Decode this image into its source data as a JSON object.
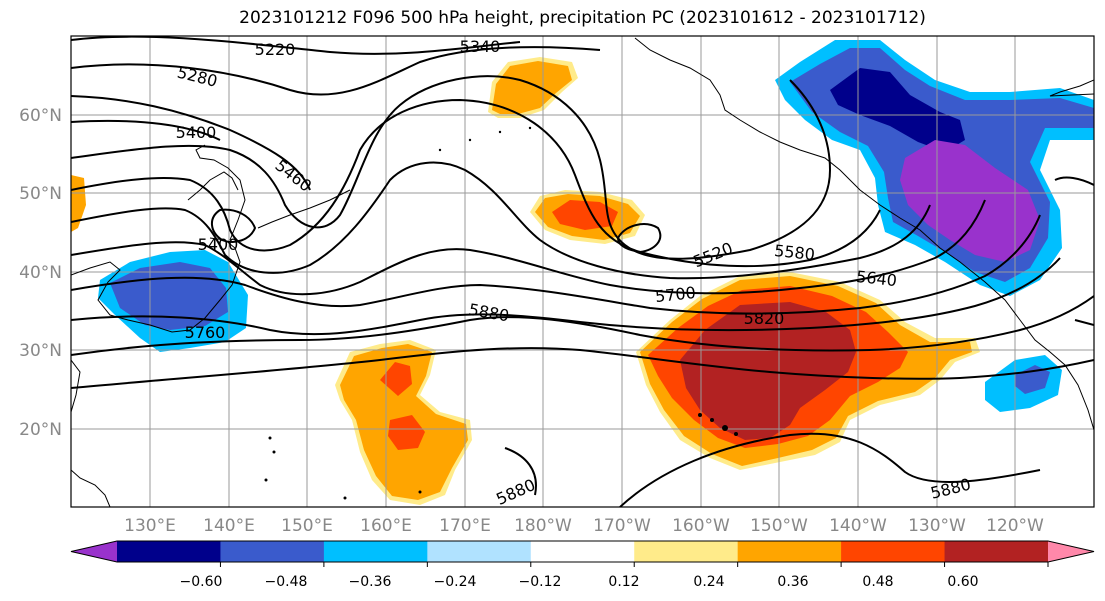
{
  "title": "2023101212 F096 500 hPa height, precipitation PC (2023101612 - 2023101712)",
  "map": {
    "lat_ticks": [
      "60°N",
      "50°N",
      "40°N",
      "30°N",
      "20°N"
    ],
    "lon_ticks": [
      "130°E",
      "140°E",
      "150°E",
      "160°E",
      "170°E",
      "180°W",
      "170°W",
      "160°W",
      "150°W",
      "140°W",
      "130°W",
      "120°W"
    ],
    "contour_labels": [
      "5220",
      "5340",
      "5280",
      "5400",
      "5460",
      "5400",
      "5760",
      "5880",
      "5520",
      "5580",
      "5640",
      "5700",
      "5820",
      "5880",
      "5880"
    ]
  },
  "colorbar": {
    "ticks": [
      "−0.60",
      "−0.48",
      "−0.36",
      "−0.24",
      "−0.12",
      "0.12",
      "0.24",
      "0.36",
      "0.48",
      "0.60"
    ],
    "colors": [
      "#9932cc",
      "#00008b",
      "#3a5bcc",
      "#00bfff",
      "#b0e2ff",
      "#ffffff",
      "#ffeb8a",
      "#ffa500",
      "#ff4500",
      "#b22222",
      "#ff88aa"
    ]
  }
}
